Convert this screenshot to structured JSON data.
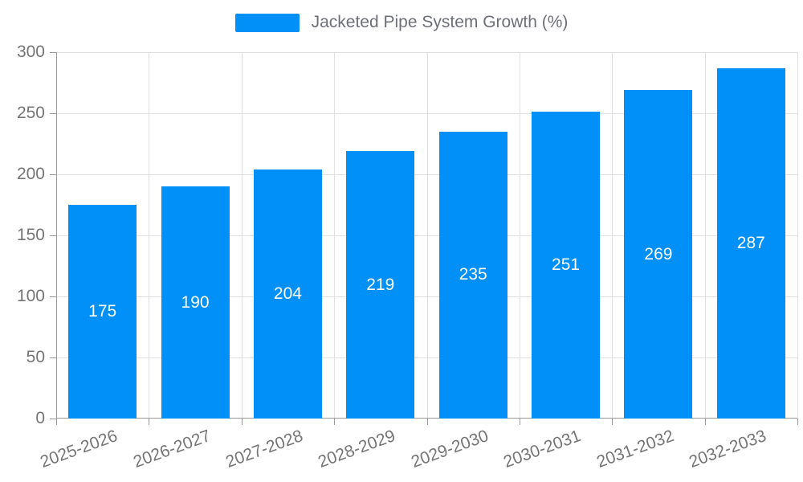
{
  "legend": {
    "label": "Jacketed Pipe System Growth (%)"
  },
  "chart_data": {
    "type": "bar",
    "title": "Jacketed Pipe System Growth (%)",
    "categories": [
      "2025-2026",
      "2026-2027",
      "2027-2028",
      "2028-2029",
      "2029-2030",
      "2030-2031",
      "2031-2032",
      "2032-2033"
    ],
    "values": [
      175,
      190,
      204,
      219,
      235,
      251,
      269,
      287
    ],
    "xlabel": "",
    "ylabel": "",
    "ylim": [
      0,
      300
    ],
    "ytick_step": 50,
    "grid": true,
    "legend_position": "top-center",
    "value_labels": "inside-center",
    "colors": {
      "bar": "#0090f7",
      "grid": "#e0e0e0",
      "axis": "#999999",
      "tick_label": "#757575",
      "value_label": "#ffffff",
      "legend_text": "#6e7079"
    }
  }
}
